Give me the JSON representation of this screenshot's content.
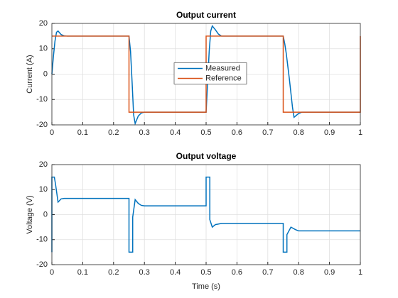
{
  "chart_data": [
    {
      "type": "line",
      "title": "Output current",
      "ylabel": "Current (A)",
      "xlim": [
        0,
        1
      ],
      "xticks": [
        0,
        0.1,
        0.2,
        0.3,
        0.4,
        0.5,
        0.6,
        0.7,
        0.8,
        0.9,
        1
      ],
      "ylim": [
        -20,
        20
      ],
      "yticks": [
        -20,
        -10,
        0,
        10,
        20
      ],
      "grid": true,
      "legend": "center",
      "series": [
        {
          "name": "Measured",
          "color": "#0072BD",
          "x": [
            0,
            0.005,
            0.01,
            0.015,
            0.02,
            0.025,
            0.03,
            0.04,
            0.05,
            0.25,
            0.255,
            0.26,
            0.265,
            0.27,
            0.275,
            0.28,
            0.29,
            0.3,
            0.5,
            0.505,
            0.51,
            0.515,
            0.52,
            0.53,
            0.54,
            0.55,
            0.75,
            0.755,
            0.76,
            0.77,
            0.78,
            0.785,
            0.79,
            0.8,
            0.81,
            1
          ],
          "values": [
            0,
            7,
            13,
            16.5,
            17,
            16.3,
            15.6,
            15.1,
            15,
            15,
            9,
            -3,
            -16,
            -19.5,
            -18,
            -16.5,
            -15.3,
            -15,
            -15,
            -3,
            9,
            17,
            19,
            17.5,
            15.8,
            15,
            15,
            12,
            8,
            -2,
            -13,
            -17,
            -16.5,
            -15.5,
            -15,
            -15
          ]
        },
        {
          "name": "Reference",
          "color": "#D95319",
          "x": [
            0,
            0.25,
            0.25,
            0.5,
            0.5,
            0.75,
            0.75,
            1,
            1
          ],
          "values": [
            15,
            15,
            -15,
            -15,
            15,
            15,
            -15,
            -15,
            15
          ]
        }
      ]
    },
    {
      "type": "line",
      "title": "Output voltage",
      "ylabel": "Voltage (V)",
      "xlabel": "Time (s)",
      "xlim": [
        0,
        1
      ],
      "xticks": [
        0,
        0.1,
        0.2,
        0.3,
        0.4,
        0.5,
        0.6,
        0.7,
        0.8,
        0.9,
        1
      ],
      "ylim": [
        -20,
        20
      ],
      "yticks": [
        -20,
        -10,
        0,
        10,
        20
      ],
      "grid": true,
      "series": [
        {
          "color": "#0072BD",
          "x": [
            0,
            0,
            0.008,
            0.012,
            0.02,
            0.03,
            0.04,
            0.25,
            0.25,
            0.262,
            0.262,
            0.27,
            0.28,
            0.29,
            0.3,
            0.5,
            0.5,
            0.512,
            0.512,
            0.52,
            0.53,
            0.55,
            0.75,
            0.75,
            0.762,
            0.762,
            0.775,
            0.79,
            0.8,
            1
          ],
          "values": [
            -15,
            15,
            15,
            12,
            5,
            6.3,
            6.5,
            6.5,
            -15,
            -15,
            -1,
            6,
            4.5,
            3.7,
            3.5,
            3.5,
            15,
            15,
            -2,
            -5,
            -4,
            -3.5,
            -3.5,
            -15,
            -15,
            -8,
            -5,
            -6,
            -6.5,
            -6.5
          ]
        }
      ]
    }
  ]
}
